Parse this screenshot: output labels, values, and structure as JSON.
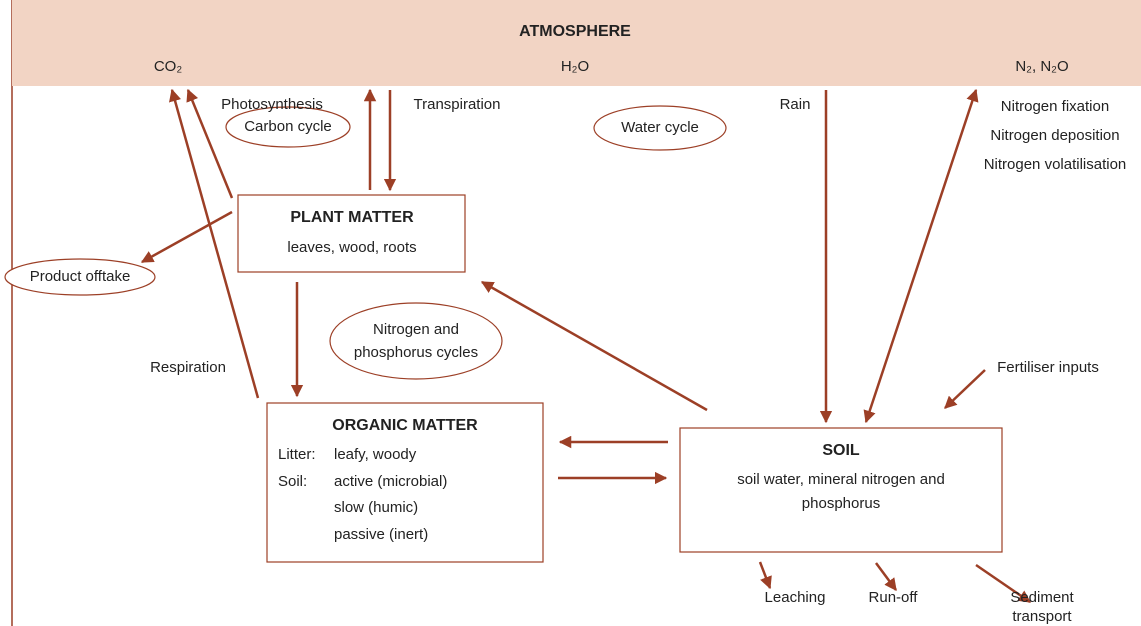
{
  "atmosphere": {
    "title": "ATMOSPHERE",
    "labels": [
      "CO₂",
      "H₂O",
      "N₂, N₂O"
    ]
  },
  "nodes": [
    {
      "title": "PLANT MATTER",
      "lines": [
        "leaves, wood, roots"
      ]
    },
    {
      "title": "ORGANIC MATTER",
      "lines": [
        "Litter:",
        "leafy, woody",
        "Soil:",
        "active (microbial)",
        "slow (humic)",
        "passive (inert)"
      ]
    },
    {
      "title": "SOIL",
      "lines": [
        "soil water, mineral nitrogen and",
        "phosphorus"
      ]
    }
  ],
  "cycles": [
    "Carbon cycle",
    "Water cycle",
    "Product offtake",
    "Nitrogen and",
    "phosphorus cycles"
  ],
  "flows": [
    "Photosynthesis",
    "Transpiration",
    "Rain",
    "Nitrogen fixation",
    "Nitrogen deposition",
    "Nitrogen volatilisation",
    "Respiration",
    "Fertiliser inputs",
    "Leaching",
    "Run-off",
    "Sediment",
    "transport"
  ]
}
